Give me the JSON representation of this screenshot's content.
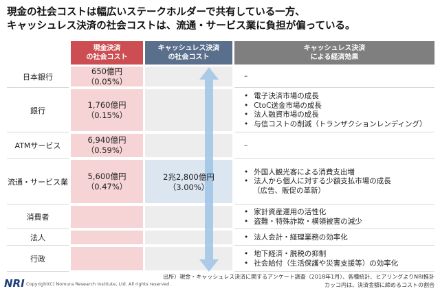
{
  "title": [
    "現金の社会コストは幅広いステークホルダーで共有している一方、",
    "キャッシュレス決済の社会コストは、流通・サービス業に負担が偏っている。"
  ],
  "table": {
    "headers": [
      [
        "現金決済",
        "の社会コスト"
      ],
      [
        "キャッシュレス決済",
        "の社会コスト"
      ],
      [
        "キャッシュレス決済",
        "による経済効果"
      ]
    ],
    "rows": [
      {
        "label": "日本銀行",
        "cash": [
          "650億円",
          "（0.05%）"
        ],
        "effect": "–"
      },
      {
        "label": "銀行",
        "cash": [
          "1,760億円",
          "（0.15%）"
        ],
        "effects": [
          "電子決済市場の成長",
          "CtoC送金市場の成長",
          "法人融資市場の成長",
          "与信コストの削減（トランザクションレンディング）"
        ]
      },
      {
        "label": "ATMサービス",
        "cash": [
          "6,940億円",
          "（0.59%）"
        ],
        "effect": "–"
      },
      {
        "label": "流通・サービス業",
        "cash": [
          "5,600億円",
          "（0.47%）"
        ],
        "cashless": [
          "2兆2,800億円",
          "（3.00%）"
        ],
        "effects": [
          "外国人観光客による消費支出増",
          "法人から個人に対する少額支払市場の成長"
        ],
        "effects_note": "（広告、販促の革新）"
      },
      {
        "label": "消費者",
        "effects": [
          "家計資産運用の活性化",
          "盗難・特殊詐欺・横領被害の減少"
        ]
      },
      {
        "label": "法人",
        "effects": [
          "法人会計・経理業務の効率化"
        ]
      },
      {
        "label": "行政",
        "effects": [
          "地下経済・脱税の抑制",
          "社会給付（生活保護や災害支援等）の効率化"
        ]
      }
    ]
  },
  "source": [
    "出所）現金・キャッシュレス決済に関するアンケート調査（2018年1月）、各種統計、ヒアリングよりNRI推計",
    "カッコ内は、決済金額に締めるコストの割合"
  ],
  "logo": "NRI",
  "copyright": "Copyright(C) Nomura Research Institute, Ltd. All rights reserved."
}
